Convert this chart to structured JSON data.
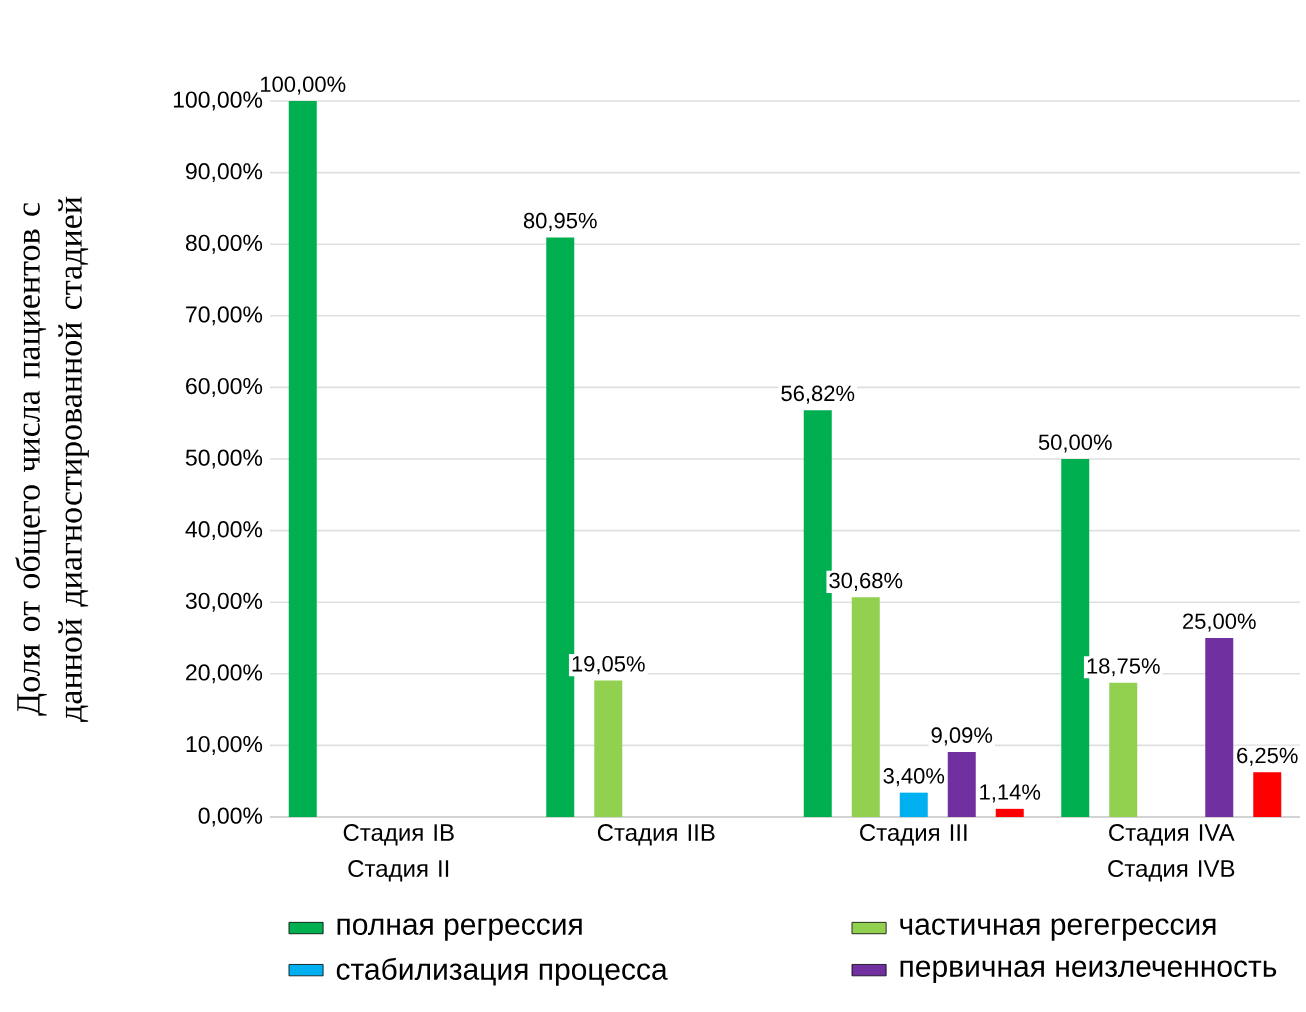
{
  "chart_data": {
    "type": "bar",
    "ylabel": "Доля от общего числа пациентов с данной диагностированной стадией",
    "categories": [
      "Стадия IB Стадия II",
      "Стадия IIB",
      "Стадия III",
      "Стадия IVA Стадия IVB"
    ],
    "series": [
      {
        "name": "полная регрессия",
        "color": "#00b050",
        "values": [
          100,
          80.95,
          56.82,
          50
        ],
        "value_labels": [
          "100,00%",
          "80,95%",
          "56,82%",
          "50,00%"
        ]
      },
      {
        "name": "частичная регегрессия",
        "color": "#92d050",
        "values": [
          null,
          19.05,
          30.68,
          18.75
        ],
        "value_labels": [
          null,
          "19,05%",
          "30,68%",
          "18,75%"
        ]
      },
      {
        "name": "стабилизация процесса",
        "color": "#00b0f0",
        "values": [
          null,
          null,
          3.4,
          null
        ],
        "value_labels": [
          null,
          null,
          "3,40%",
          null
        ]
      },
      {
        "name": "первичная неизлеченность",
        "color": "#7030a0",
        "values": [
          null,
          null,
          9.09,
          25.0
        ],
        "value_labels": [
          null,
          null,
          "9,09%",
          "25,00%"
        ]
      },
      {
        "color": "#ff0000",
        "values": [
          null,
          null,
          1.14,
          6.25
        ],
        "value_labels": [
          null,
          null,
          "1,14%",
          "6,25%"
        ]
      }
    ],
    "ylim": [
      0,
      100
    ],
    "yticks": [
      {
        "value": 0,
        "label": "0,00%"
      },
      {
        "value": 10,
        "label": "10,00%"
      },
      {
        "value": 20,
        "label": "20,00%"
      },
      {
        "value": 30,
        "label": "30,00%"
      },
      {
        "value": 40,
        "label": "40,00%"
      },
      {
        "value": 50,
        "label": "50,00%"
      },
      {
        "value": 60,
        "label": "60,00%"
      },
      {
        "value": 70,
        "label": "70,00%"
      },
      {
        "value": 80,
        "label": "80,00%"
      },
      {
        "value": 90,
        "label": "90,00%"
      },
      {
        "value": 100,
        "label": "100,00%"
      }
    ],
    "grid": "y",
    "legend": "bottom"
  }
}
